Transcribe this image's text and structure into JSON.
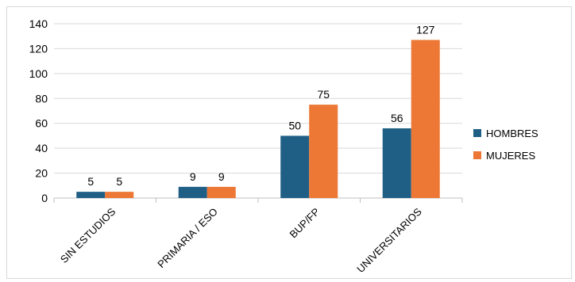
{
  "chart_data": {
    "type": "bar",
    "categories": [
      "SIN ESTUDIOS",
      "PRIMARIA / ESO",
      "BUP/FP",
      "UNIVERSITARIOS"
    ],
    "series": [
      {
        "name": "HOMBRES",
        "values": [
          5,
          9,
          50,
          56
        ],
        "color": "#1f5f86"
      },
      {
        "name": "MUJERES",
        "values": [
          5,
          9,
          75,
          127
        ],
        "color": "#ed7734"
      }
    ],
    "title": "",
    "xlabel": "",
    "ylabel": "",
    "ylim": [
      0,
      140
    ],
    "yticks": [
      "0",
      "20",
      "40",
      "60",
      "80",
      "100",
      "120",
      "140"
    ],
    "grid": true,
    "legend_position": "right"
  }
}
